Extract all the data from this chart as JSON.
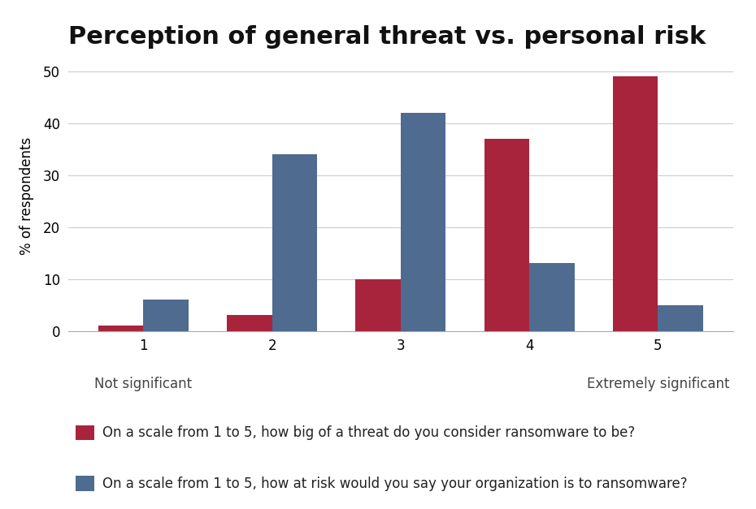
{
  "title": "Perception of general threat vs. personal risk",
  "categories": [
    1,
    2,
    3,
    4,
    5
  ],
  "red_values": [
    1,
    3,
    10,
    37,
    49
  ],
  "blue_values": [
    6,
    34,
    42,
    13,
    5
  ],
  "red_color": "#A8243C",
  "blue_color": "#4F6B8F",
  "ylabel": "% of respondents",
  "ylim": [
    0,
    52
  ],
  "yticks": [
    0,
    10,
    20,
    30,
    40,
    50
  ],
  "xlabel_left": "Not significant",
  "xlabel_right": "Extremely significant",
  "legend_red": "On a scale from 1 to 5, how big of a threat do you consider ransomware to be?",
  "legend_blue": "On a scale from 1 to 5, how at risk would you say your organization is to ransomware?",
  "background_color": "#FFFFFF",
  "title_fontsize": 22,
  "axis_fontsize": 12,
  "sublabel_fontsize": 12,
  "legend_fontsize": 12,
  "bar_width": 0.35,
  "grid_color": "#CCCCCC"
}
